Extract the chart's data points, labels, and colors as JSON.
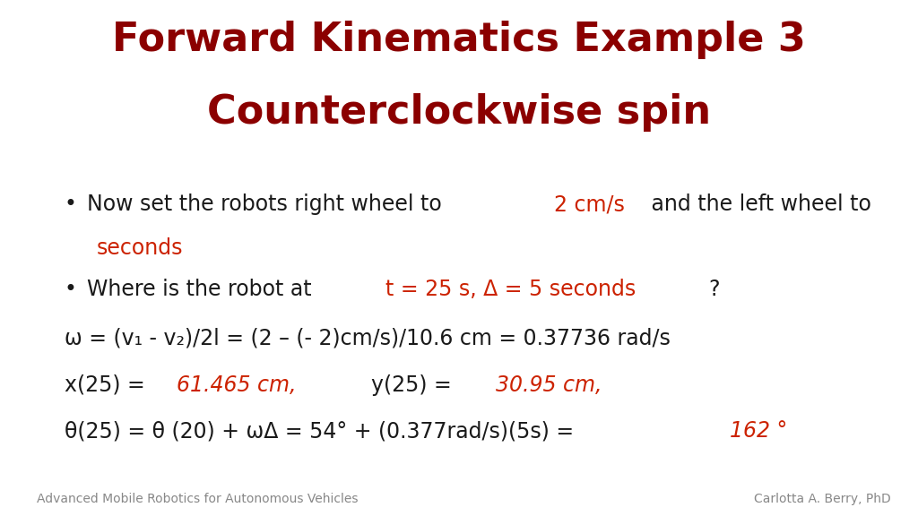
{
  "title_line1": "Forward Kinematics Example 3",
  "title_line2": "Counterclockwise spin",
  "title_color": "#8B0000",
  "title_fontsize": 32,
  "body_fontsize": 17,
  "small_fontsize": 10,
  "background_color": "#FFFFFF",
  "dark_red": "#8B0000",
  "highlight_color": "#CC2200",
  "black": "#1a1a1a",
  "footer_left": "Advanced Mobile Robotics for Autonomous Vehicles",
  "footer_right": "Carlotta A. Berry, PhD"
}
